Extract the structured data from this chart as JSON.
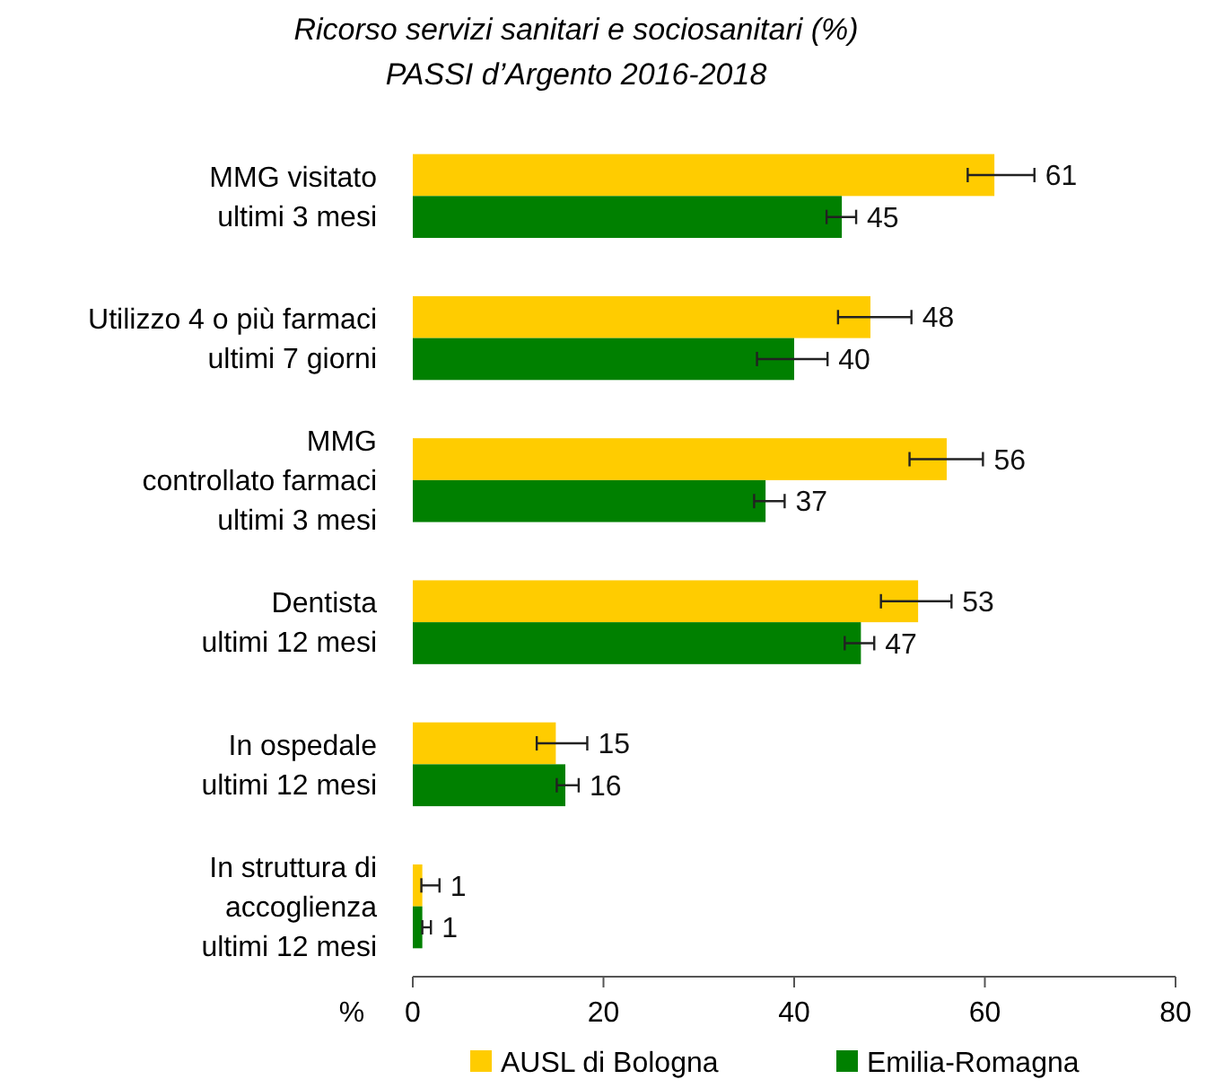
{
  "chart_data": {
    "type": "bar",
    "orientation": "horizontal",
    "title": "Ricorso servizi sanitari e sociosanitari (%)",
    "subtitle": "PASSI d’Argento 2016-2018",
    "xlabel": "%",
    "categories": [
      "MMG visitato\nultimi 3 mesi",
      "Utilizzo 4 o più farmaci\nultimi 7 giorni",
      "MMG\ncontrollato farmaci\nultimi 3 mesi",
      "Dentista\nultimi 12 mesi",
      "In ospedale\nultimi 12 mesi",
      "In struttura di\naccoglienza\nultimi 12 mesi"
    ],
    "series": [
      {
        "name": "AUSL di Bologna",
        "color": "#ffcc00",
        "values": [
          61,
          48,
          56,
          53,
          15,
          1
        ],
        "errors": [
          [
            58.2,
            65.2
          ],
          [
            44.6,
            52.3
          ],
          [
            52.1,
            59.8
          ],
          [
            49.1,
            56.5
          ],
          [
            13.0,
            18.3
          ],
          [
            0.9,
            2.8
          ]
        ]
      },
      {
        "name": "Emilia-Romagna",
        "color": "#008000",
        "values": [
          45,
          40,
          37,
          47,
          16,
          1
        ],
        "errors": [
          [
            43.4,
            46.5
          ],
          [
            36.1,
            43.5
          ],
          [
            35.8,
            39.0
          ],
          [
            45.3,
            48.4
          ],
          [
            15.1,
            17.4
          ],
          [
            1.0,
            1.9
          ]
        ]
      }
    ],
    "xlim": [
      0,
      80
    ],
    "xticks": [
      0,
      20,
      40,
      60,
      80
    ],
    "data_labels": true,
    "legend": "bottom",
    "grid": false
  }
}
